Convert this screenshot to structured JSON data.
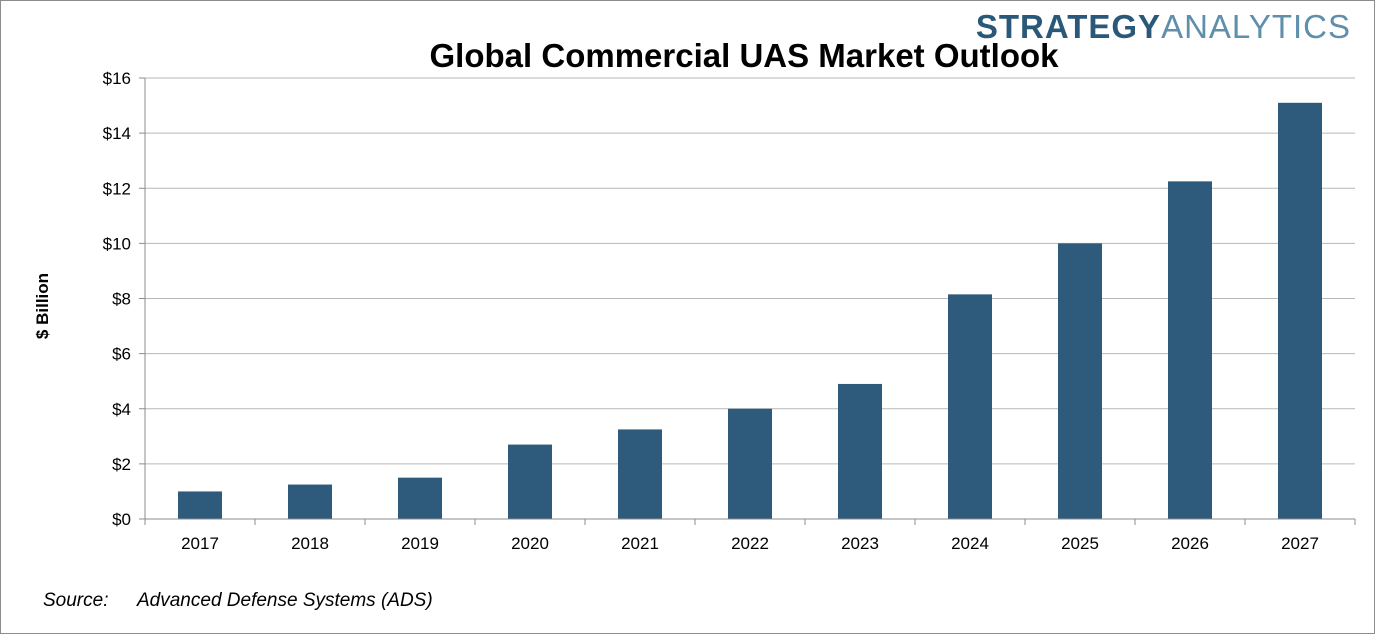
{
  "brand": {
    "part1": "STRATEGY",
    "part2": "ANALYTICS"
  },
  "source": {
    "label": "Source:",
    "text": "Advanced Defense Systems (ADS)"
  },
  "chart_data": {
    "type": "bar",
    "title": "Global Commercial UAS Market Outlook",
    "xlabel": "",
    "ylabel": "$ Billion",
    "categories": [
      "2017",
      "2018",
      "2019",
      "2020",
      "2021",
      "2022",
      "2023",
      "2024",
      "2025",
      "2026",
      "2027"
    ],
    "values": [
      1.0,
      1.25,
      1.5,
      2.7,
      3.25,
      4.0,
      4.9,
      8.15,
      10.0,
      12.25,
      15.1
    ],
    "ylim": [
      0,
      16
    ],
    "yticks": [
      0,
      2,
      4,
      6,
      8,
      10,
      12,
      14,
      16
    ],
    "ytick_labels": [
      "$0",
      "$2",
      "$4",
      "$6",
      "$8",
      "$10",
      "$12",
      "$14",
      "$16"
    ],
    "grid": true,
    "legend": "none",
    "bar_color": "#2e5a7c",
    "grid_color": "#b7b7b7"
  }
}
